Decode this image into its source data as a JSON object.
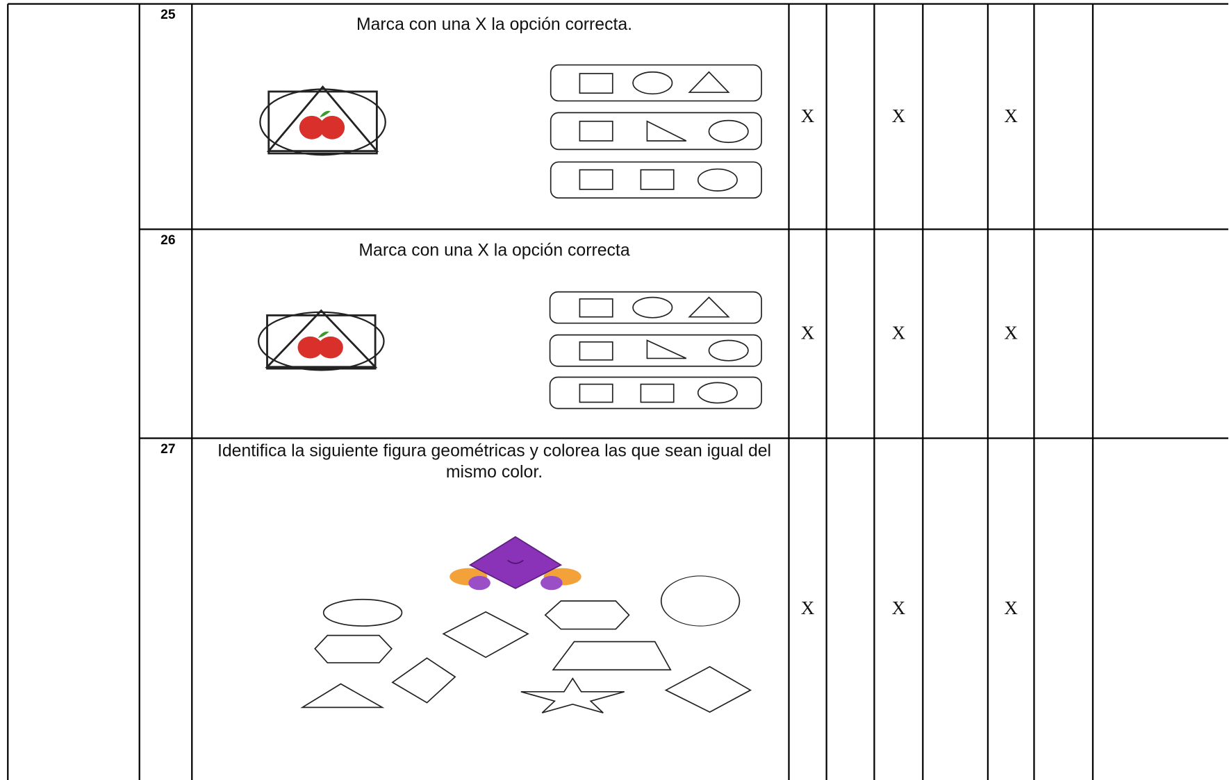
{
  "rows": [
    {
      "number": "25",
      "instruction": "Marca con una X la opción correcta.",
      "cells": [
        "X",
        null,
        "X",
        null,
        "X",
        null,
        null
      ]
    },
    {
      "number": "26",
      "instruction": "Marca con una X la opción correcta",
      "cells": [
        "X",
        null,
        "X",
        null,
        "X",
        null,
        null
      ]
    },
    {
      "number": "27",
      "instruction": "Identifica la siguiente figura geométricas y colorea las que sean igual del mismo color.",
      "cells": [
        "X",
        null,
        "X",
        null,
        "X",
        null,
        null
      ]
    }
  ]
}
